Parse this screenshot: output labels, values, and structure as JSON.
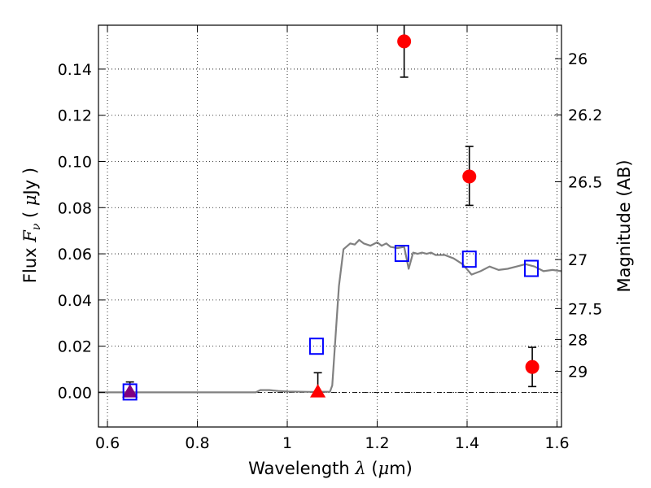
{
  "chart_data": {
    "type": "scatter",
    "xlabel": "Wavelength  λ (μm)",
    "ylabel_left": "Flux  F_ν  ( μJy )",
    "ylabel_right": "Magnitude (AB)",
    "xlim": [
      0.58,
      1.61
    ],
    "ylim": [
      -0.015,
      0.159
    ],
    "grid": true,
    "x_ticks": [
      0.6,
      0.8,
      1.0,
      1.2,
      1.4,
      1.6
    ],
    "x_tick_labels": [
      "0.6",
      "0.8",
      "1",
      "1.2",
      "1.4",
      "1.6"
    ],
    "y_ticks": [
      0.0,
      0.02,
      0.04,
      0.06,
      0.08,
      0.1,
      0.12,
      0.14
    ],
    "y_tick_labels": [
      "0.00",
      "0.02",
      "0.04",
      "0.06",
      "0.08",
      "0.10",
      "0.12",
      "0.14"
    ],
    "right_ticks": [
      {
        "label": "26",
        "flux": 0.1445
      },
      {
        "label": "26.2",
        "flux": 0.1202
      },
      {
        "label": "26.5",
        "flux": 0.0912
      },
      {
        "label": "27",
        "flux": 0.0575
      },
      {
        "label": "27.5",
        "flux": 0.0363
      },
      {
        "label": "28",
        "flux": 0.0229
      },
      {
        "label": "29",
        "flux": 0.0091
      }
    ],
    "series": [
      {
        "name": "",
        "kind": "line",
        "color": "#808080",
        "x": [
          0.58,
          0.93,
          0.94,
          0.96,
          0.98,
          1.0,
          1.05,
          1.095,
          1.1,
          1.115,
          1.125,
          1.14,
          1.15,
          1.16,
          1.17,
          1.185,
          1.2,
          1.21,
          1.22,
          1.23,
          1.245,
          1.26,
          1.27,
          1.28,
          1.29,
          1.3,
          1.31,
          1.32,
          1.33,
          1.35,
          1.37,
          1.39,
          1.41,
          1.43,
          1.45,
          1.47,
          1.49,
          1.51,
          1.53,
          1.55,
          1.57,
          1.59,
          1.61
        ],
        "y": [
          0.0,
          0.0,
          0.001,
          0.001,
          0.0006,
          0.0004,
          0.0002,
          0.0003,
          0.003,
          0.046,
          0.062,
          0.0645,
          0.064,
          0.066,
          0.0645,
          0.0635,
          0.065,
          0.0635,
          0.0645,
          0.063,
          0.0625,
          0.063,
          0.0535,
          0.0605,
          0.06,
          0.0605,
          0.06,
          0.0605,
          0.0595,
          0.0595,
          0.058,
          0.0555,
          0.051,
          0.0525,
          0.0545,
          0.053,
          0.0535,
          0.0545,
          0.0555,
          0.0545,
          0.0525,
          0.053,
          0.0525
        ]
      },
      {
        "name": "",
        "kind": "points",
        "marker": "circle",
        "color": "#ff0000",
        "x": [
          1.26,
          1.405,
          1.545
        ],
        "y": [
          0.152,
          0.0935,
          0.011
        ],
        "err_low": [
          0.0155,
          0.0125,
          0.0085
        ],
        "err_high": [
          0.0155,
          0.013,
          0.0085
        ]
      },
      {
        "name": "",
        "kind": "points",
        "marker": "triangle",
        "color": "#ff0000",
        "x": [
          1.068
        ],
        "y": [
          0.0
        ],
        "err_low": [
          0.0
        ],
        "err_high": [
          0.0085
        ]
      },
      {
        "name": "",
        "kind": "points",
        "marker": "triangle",
        "color": "#800080",
        "x": [
          0.65
        ],
        "y": [
          0.0
        ],
        "err_low": [
          0.0
        ],
        "err_high": [
          0.0045
        ]
      },
      {
        "name": "",
        "kind": "points",
        "marker": "square-open",
        "color": "#0000ff",
        "x": [
          0.65,
          1.065,
          1.255,
          1.405,
          1.543
        ],
        "y": [
          0.0,
          0.0198,
          0.06,
          0.0575,
          0.0535
        ]
      }
    ]
  }
}
